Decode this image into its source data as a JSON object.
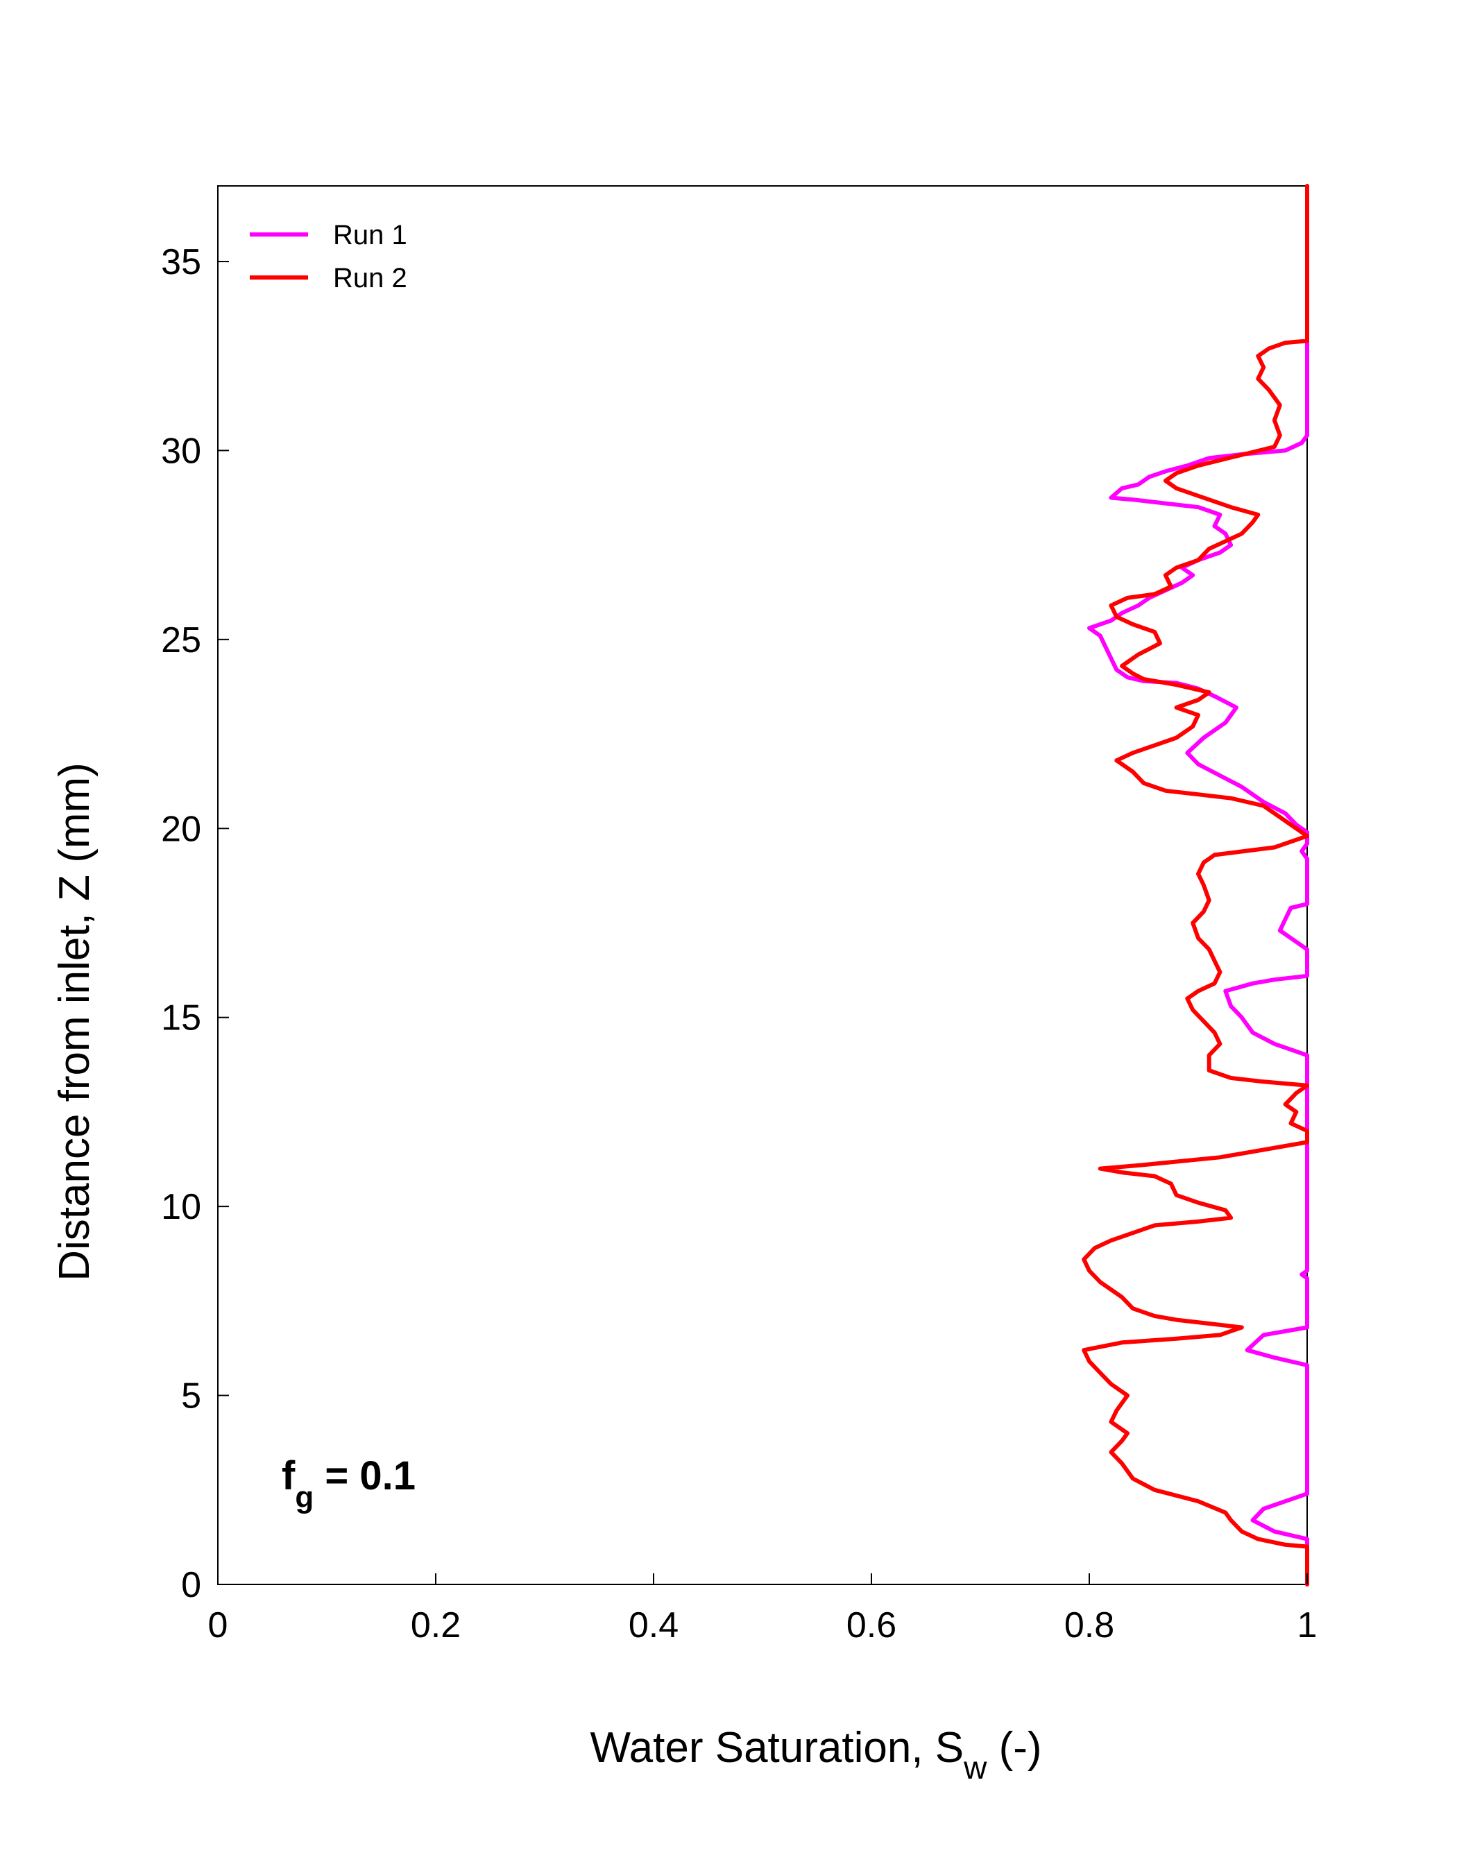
{
  "chart_data": {
    "type": "line",
    "title": "",
    "xlabel": "Water Saturation, S",
    "xlabel_sub": "w",
    "xlabel_suffix": " (-)",
    "ylabel": "Distance from inlet, Z (mm)",
    "xlim": [
      0,
      1
    ],
    "ylim": [
      0,
      37
    ],
    "x_ticks": [
      0,
      0.2,
      0.4,
      0.6,
      0.8,
      1
    ],
    "x_tick_labels": [
      "0",
      "0.2",
      "0.4",
      "0.6",
      "0.8",
      "1"
    ],
    "y_ticks": [
      0,
      5,
      10,
      15,
      20,
      25,
      30,
      35
    ],
    "y_tick_labels": [
      "0",
      "5",
      "10",
      "15",
      "20",
      "25",
      "30",
      "35"
    ],
    "grid": false,
    "legend_position": "top-left",
    "annotation": {
      "main": "f",
      "sub": "g",
      "rest": " = 0.1"
    },
    "series": [
      {
        "name": "Run 1",
        "color": "#ff00ff",
        "points": [
          [
            1.0,
            0
          ],
          [
            1.0,
            1.2
          ],
          [
            0.97,
            1.4
          ],
          [
            0.95,
            1.7
          ],
          [
            0.96,
            2.0
          ],
          [
            0.99,
            2.3
          ],
          [
            1.0,
            2.4
          ],
          [
            1.0,
            5.8
          ],
          [
            0.97,
            6.0
          ],
          [
            0.945,
            6.2
          ],
          [
            0.96,
            6.6
          ],
          [
            1.0,
            6.8
          ],
          [
            1.0,
            8.1
          ],
          [
            0.995,
            8.2
          ],
          [
            1.0,
            8.3
          ],
          [
            1.0,
            14.0
          ],
          [
            0.97,
            14.3
          ],
          [
            0.95,
            14.6
          ],
          [
            0.94,
            15.0
          ],
          [
            0.93,
            15.3
          ],
          [
            0.925,
            15.7
          ],
          [
            0.95,
            15.9
          ],
          [
            0.97,
            16.0
          ],
          [
            1.0,
            16.1
          ],
          [
            1.0,
            16.8
          ],
          [
            0.99,
            17.0
          ],
          [
            0.975,
            17.3
          ],
          [
            0.98,
            17.6
          ],
          [
            0.985,
            17.9
          ],
          [
            1.0,
            18.0
          ],
          [
            1.0,
            19.2
          ],
          [
            0.995,
            19.4
          ],
          [
            1.0,
            19.6
          ],
          [
            1.0,
            19.9
          ],
          [
            0.99,
            20.1
          ],
          [
            0.98,
            20.4
          ],
          [
            0.96,
            20.7
          ],
          [
            0.94,
            21.1
          ],
          [
            0.92,
            21.4
          ],
          [
            0.9,
            21.7
          ],
          [
            0.89,
            22.0
          ],
          [
            0.905,
            22.4
          ],
          [
            0.925,
            22.8
          ],
          [
            0.935,
            23.2
          ],
          [
            0.915,
            23.5
          ],
          [
            0.9,
            23.7
          ],
          [
            0.88,
            23.85
          ],
          [
            0.85,
            23.9
          ],
          [
            0.835,
            24.0
          ],
          [
            0.825,
            24.2
          ],
          [
            0.82,
            24.5
          ],
          [
            0.815,
            24.8
          ],
          [
            0.81,
            25.1
          ],
          [
            0.8,
            25.3
          ],
          [
            0.82,
            25.5
          ],
          [
            0.83,
            25.7
          ],
          [
            0.845,
            25.9
          ],
          [
            0.855,
            26.1
          ],
          [
            0.87,
            26.3
          ],
          [
            0.885,
            26.5
          ],
          [
            0.895,
            26.7
          ],
          [
            0.885,
            26.9
          ],
          [
            0.9,
            27.1
          ],
          [
            0.92,
            27.3
          ],
          [
            0.93,
            27.5
          ],
          [
            0.925,
            27.8
          ],
          [
            0.915,
            28.0
          ],
          [
            0.92,
            28.3
          ],
          [
            0.9,
            28.5
          ],
          [
            0.87,
            28.6
          ],
          [
            0.84,
            28.7
          ],
          [
            0.82,
            28.75
          ],
          [
            0.83,
            29.0
          ],
          [
            0.845,
            29.1
          ],
          [
            0.855,
            29.3
          ],
          [
            0.87,
            29.45
          ],
          [
            0.89,
            29.6
          ],
          [
            0.91,
            29.8
          ],
          [
            0.94,
            29.9
          ],
          [
            0.98,
            30.0
          ],
          [
            0.995,
            30.2
          ],
          [
            1.0,
            30.4
          ],
          [
            1.0,
            37
          ]
        ]
      },
      {
        "name": "Run 2",
        "color": "#ff0000",
        "points": [
          [
            1.0,
            0
          ],
          [
            1.0,
            1.0
          ],
          [
            0.98,
            1.05
          ],
          [
            0.955,
            1.2
          ],
          [
            0.94,
            1.4
          ],
          [
            0.93,
            1.7
          ],
          [
            0.925,
            1.9
          ],
          [
            0.9,
            2.2
          ],
          [
            0.86,
            2.5
          ],
          [
            0.84,
            2.8
          ],
          [
            0.83,
            3.2
          ],
          [
            0.82,
            3.5
          ],
          [
            0.83,
            3.8
          ],
          [
            0.835,
            4.0
          ],
          [
            0.82,
            4.3
          ],
          [
            0.825,
            4.6
          ],
          [
            0.835,
            5.0
          ],
          [
            0.82,
            5.3
          ],
          [
            0.81,
            5.6
          ],
          [
            0.8,
            5.9
          ],
          [
            0.795,
            6.2
          ],
          [
            0.83,
            6.4
          ],
          [
            0.88,
            6.5
          ],
          [
            0.92,
            6.6
          ],
          [
            0.94,
            6.8
          ],
          [
            0.91,
            6.9
          ],
          [
            0.88,
            7.0
          ],
          [
            0.86,
            7.1
          ],
          [
            0.84,
            7.3
          ],
          [
            0.83,
            7.6
          ],
          [
            0.82,
            7.8
          ],
          [
            0.81,
            8.0
          ],
          [
            0.8,
            8.3
          ],
          [
            0.795,
            8.6
          ],
          [
            0.805,
            8.9
          ],
          [
            0.82,
            9.1
          ],
          [
            0.84,
            9.3
          ],
          [
            0.86,
            9.5
          ],
          [
            0.9,
            9.6
          ],
          [
            0.93,
            9.7
          ],
          [
            0.925,
            9.9
          ],
          [
            0.9,
            10.1
          ],
          [
            0.88,
            10.3
          ],
          [
            0.875,
            10.6
          ],
          [
            0.86,
            10.8
          ],
          [
            0.83,
            10.9
          ],
          [
            0.81,
            11.0
          ],
          [
            0.85,
            11.1
          ],
          [
            0.92,
            11.3
          ],
          [
            1.0,
            11.7
          ],
          [
            1.0,
            12.0
          ],
          [
            0.985,
            12.2
          ],
          [
            0.99,
            12.5
          ],
          [
            0.98,
            12.7
          ],
          [
            0.99,
            13.0
          ],
          [
            1.0,
            13.2
          ],
          [
            0.96,
            13.3
          ],
          [
            0.93,
            13.4
          ],
          [
            0.91,
            13.6
          ],
          [
            0.91,
            14.0
          ],
          [
            0.92,
            14.3
          ],
          [
            0.915,
            14.6
          ],
          [
            0.905,
            14.9
          ],
          [
            0.895,
            15.2
          ],
          [
            0.89,
            15.5
          ],
          [
            0.9,
            15.7
          ],
          [
            0.915,
            15.9
          ],
          [
            0.92,
            16.2
          ],
          [
            0.915,
            16.5
          ],
          [
            0.91,
            16.8
          ],
          [
            0.9,
            17.1
          ],
          [
            0.895,
            17.5
          ],
          [
            0.905,
            17.8
          ],
          [
            0.91,
            18.1
          ],
          [
            0.905,
            18.5
          ],
          [
            0.9,
            18.8
          ],
          [
            0.905,
            19.1
          ],
          [
            0.915,
            19.3
          ],
          [
            0.97,
            19.5
          ],
          [
            1.0,
            19.8
          ],
          [
            0.98,
            20.2
          ],
          [
            0.96,
            20.6
          ],
          [
            0.93,
            20.8
          ],
          [
            0.9,
            20.9
          ],
          [
            0.87,
            21.0
          ],
          [
            0.85,
            21.2
          ],
          [
            0.84,
            21.5
          ],
          [
            0.825,
            21.8
          ],
          [
            0.84,
            22.0
          ],
          [
            0.86,
            22.2
          ],
          [
            0.88,
            22.4
          ],
          [
            0.895,
            22.7
          ],
          [
            0.9,
            23.0
          ],
          [
            0.88,
            23.2
          ],
          [
            0.9,
            23.4
          ],
          [
            0.91,
            23.6
          ],
          [
            0.88,
            23.8
          ],
          [
            0.85,
            23.95
          ],
          [
            0.84,
            24.1
          ],
          [
            0.83,
            24.3
          ],
          [
            0.845,
            24.6
          ],
          [
            0.865,
            24.9
          ],
          [
            0.86,
            25.2
          ],
          [
            0.84,
            25.4
          ],
          [
            0.825,
            25.6
          ],
          [
            0.82,
            25.9
          ],
          [
            0.835,
            26.1
          ],
          [
            0.86,
            26.2
          ],
          [
            0.875,
            26.4
          ],
          [
            0.87,
            26.7
          ],
          [
            0.88,
            26.9
          ],
          [
            0.9,
            27.1
          ],
          [
            0.91,
            27.4
          ],
          [
            0.925,
            27.6
          ],
          [
            0.94,
            27.8
          ],
          [
            0.95,
            28.1
          ],
          [
            0.955,
            28.3
          ],
          [
            0.93,
            28.5
          ],
          [
            0.9,
            28.8
          ],
          [
            0.88,
            29.0
          ],
          [
            0.87,
            29.2
          ],
          [
            0.88,
            29.4
          ],
          [
            0.9,
            29.6
          ],
          [
            0.935,
            29.85
          ],
          [
            0.97,
            30.1
          ],
          [
            0.975,
            30.4
          ],
          [
            0.97,
            30.8
          ],
          [
            0.975,
            31.2
          ],
          [
            0.965,
            31.6
          ],
          [
            0.955,
            31.9
          ],
          [
            0.96,
            32.2
          ],
          [
            0.955,
            32.5
          ],
          [
            0.965,
            32.7
          ],
          [
            0.98,
            32.85
          ],
          [
            1.0,
            32.9
          ],
          [
            1.0,
            37
          ]
        ]
      }
    ]
  }
}
